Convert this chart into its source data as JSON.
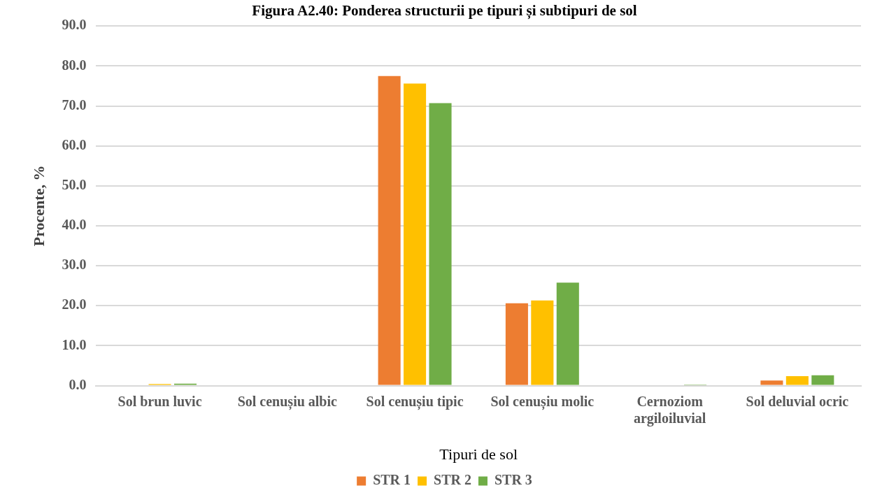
{
  "chart_data": {
    "type": "bar",
    "title": "Figura A2.40: Ponderea structurii pe tipuri și subtipuri de sol",
    "xlabel": "Tipuri de sol",
    "ylabel": "Procente, %",
    "categories": [
      "Sol brun luvic",
      "Sol cenușiu albic",
      "Sol cenușiu tipic",
      "Sol cenușiu molic",
      "Cernoziom argiloiluvial",
      "Sol deluvial ocric"
    ],
    "series": [
      {
        "name": "STR 1",
        "color": "#ed7d31",
        "values": [
          0,
          null,
          77.5,
          20.6,
          0,
          1.3
        ]
      },
      {
        "name": "STR 2",
        "color": "#ffc000",
        "values": [
          0.4,
          null,
          75.6,
          21.3,
          0,
          2.4
        ]
      },
      {
        "name": "STR 3",
        "color": "#70ad47",
        "values": [
          0.5,
          0,
          70.7,
          25.8,
          0.3,
          2.6
        ]
      }
    ],
    "ylim": [
      0,
      90
    ],
    "yticks": [
      {
        "value": 0,
        "label": "0.0"
      },
      {
        "value": 10,
        "label": "10.0"
      },
      {
        "value": 20,
        "label": "20.0"
      },
      {
        "value": 30,
        "label": "30.0"
      },
      {
        "value": 40,
        "label": "40.0"
      },
      {
        "value": 50,
        "label": "50.0"
      },
      {
        "value": 60,
        "label": "60.0"
      },
      {
        "value": 70,
        "label": "70.0"
      },
      {
        "value": 80,
        "label": "80.0"
      },
      {
        "value": 90,
        "label": "90.0"
      }
    ],
    "grid": "y",
    "legend": "bottom"
  }
}
